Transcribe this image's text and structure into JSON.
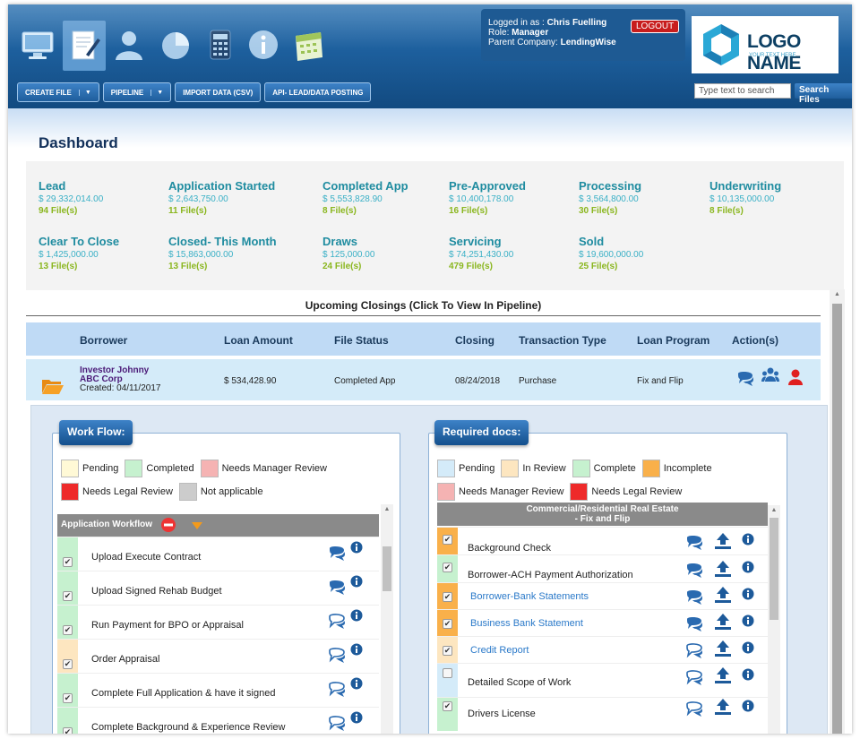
{
  "header": {
    "nav_icons": [
      "monitor-icon",
      "document-pen-icon",
      "user-icon",
      "pie-chart-icon",
      "calculator-icon",
      "info-icon",
      "calendar-icon"
    ],
    "login": {
      "logged_in_label": "Logged in as : ",
      "user": "Chris Fuelling",
      "role_label": "Role: ",
      "role": "Manager",
      "company_label": "Parent Company: ",
      "company": "LendingWise"
    },
    "logout_label": "LOGOUT",
    "logo": {
      "name": "LOGO NAME",
      "tagline": "YOUR TEXT HERE"
    },
    "menu": {
      "create_file": "CREATE FILE",
      "pipeline": "PIPELINE",
      "import": "IMPORT DATA (CSV)",
      "api": "API- LEAD/DATA POSTING"
    },
    "search": {
      "placeholder": "Type text to search",
      "button": "Search Files"
    }
  },
  "dashboard": {
    "title": "Dashboard",
    "stats": [
      {
        "name": "Lead",
        "amount": "$ 29,332,014.00",
        "files": "94 File(s)"
      },
      {
        "name": "Application Started",
        "amount": "$ 2,643,750.00",
        "files": "11 File(s)"
      },
      {
        "name": "Completed App",
        "amount": "$ 5,553,828.90",
        "files": "8 File(s)"
      },
      {
        "name": "Pre-Approved",
        "amount": "$ 10,400,178.00",
        "files": "16 File(s)"
      },
      {
        "name": "Processing",
        "amount": "$ 3,564,800.00",
        "files": "30 File(s)"
      },
      {
        "name": "Underwriting",
        "amount": "$ 10,135,000.00",
        "files": "8 File(s)"
      },
      {
        "name": "Clear To Close",
        "amount": "$ 1,425,000.00",
        "files": "13 File(s)"
      },
      {
        "name": "Closed- This Month",
        "amount": "$ 15,863,000.00",
        "files": "13 File(s)"
      },
      {
        "name": "Draws",
        "amount": "$ 125,000.00",
        "files": "24 File(s)"
      },
      {
        "name": "Servicing",
        "amount": "$ 74,251,430.00",
        "files": "479 File(s)"
      },
      {
        "name": "Sold",
        "amount": "$ 19,600,000.00",
        "files": "25 File(s)"
      }
    ]
  },
  "closings": {
    "title": "Upcoming Closings (Click To View In Pipeline)",
    "columns": [
      "Borrower",
      "Loan Amount",
      "File Status",
      "Closing",
      "Transaction Type",
      "Loan Program",
      "Action(s)"
    ],
    "row": {
      "borrower": "Investor Johnny",
      "company": "ABC Corp",
      "created": "Created: 04/11/2017",
      "loan_amount": "$ 534,428.90",
      "status": "Completed App",
      "closing": "08/24/2018",
      "transaction": "Purchase",
      "program": "Fix and Flip"
    }
  },
  "workflow": {
    "title": "Work Flow:",
    "legend": [
      {
        "label": "Pending",
        "color": "#fff9d6"
      },
      {
        "label": "Completed",
        "color": "#c6f1cf"
      },
      {
        "label": "Needs Manager Review",
        "color": "#f5b3b3"
      },
      {
        "label": "Needs Legal Review",
        "color": "#ee2a2a"
      },
      {
        "label": "Not applicable",
        "color": "#cccccc"
      }
    ],
    "section": "Application Workflow",
    "items": [
      {
        "label": "Upload Execute Contract",
        "status_color": "#c6f1cf",
        "checked": true,
        "chat": "filled"
      },
      {
        "label": "Upload Signed Rehab Budget",
        "status_color": "#c6f1cf",
        "checked": true,
        "chat": "filled"
      },
      {
        "label": "Run Payment for BPO or Appraisal",
        "status_color": "#c6f1cf",
        "checked": true,
        "chat": "outline"
      },
      {
        "label": "Order Appraisal",
        "status_color": "#fde6c0",
        "checked": true,
        "chat": "outline"
      },
      {
        "label": "Complete Full Application & have it signed",
        "status_color": "#c6f1cf",
        "checked": true,
        "chat": "outline"
      },
      {
        "label": "Complete Background & Experience Review",
        "status_color": "#c6f1cf",
        "checked": true,
        "chat": "outline"
      }
    ]
  },
  "required_docs": {
    "title": "Required docs:",
    "legend": [
      {
        "label": "Pending",
        "color": "#d4ebf9"
      },
      {
        "label": "In Review",
        "color": "#fde6c0"
      },
      {
        "label": "Complete",
        "color": "#c6f1cf"
      },
      {
        "label": "Incomplete",
        "color": "#f9b04a"
      },
      {
        "label": "Needs Manager Review",
        "color": "#f5b3b3"
      },
      {
        "label": "Needs Legal Review",
        "color": "#ee2a2a"
      }
    ],
    "section_line1": "Commercial/Residential Real Estate",
    "section_line2": "- Fix and Flip",
    "items": [
      {
        "label": "Background Check",
        "status_color": "#f9b04a",
        "checked": true,
        "link": false,
        "chat": "filled"
      },
      {
        "label": "Borrower-ACH Payment Authorization",
        "status_color": "#c6f1cf",
        "checked": true,
        "link": false,
        "chat": "filled"
      },
      {
        "label": "Borrower-Bank Statements",
        "status_color": "#f9b04a",
        "checked": true,
        "link": true,
        "chat": "filled"
      },
      {
        "label": "Business Bank Statement",
        "status_color": "#f9b04a",
        "checked": true,
        "link": true,
        "chat": "filled"
      },
      {
        "label": "Credit Report",
        "status_color": "#fde6c0",
        "checked": true,
        "link": true,
        "chat": "outline"
      },
      {
        "label": "Detailed Scope of Work",
        "status_color": "#d4ebf9",
        "checked": false,
        "link": false,
        "chat": "outline"
      },
      {
        "label": "Drivers License",
        "status_color": "#c6f1cf",
        "checked": true,
        "link": false,
        "chat": "outline"
      }
    ]
  },
  "colors": {
    "header_blue": "#1d5f9d",
    "accent_teal": "#1f8ca0",
    "files_green": "#8ab61e",
    "chat_blue": "#2a6ab0",
    "info_blue": "#1d5a9a",
    "upload_blue": "#1d5a9a",
    "user_red": "#e02020"
  }
}
